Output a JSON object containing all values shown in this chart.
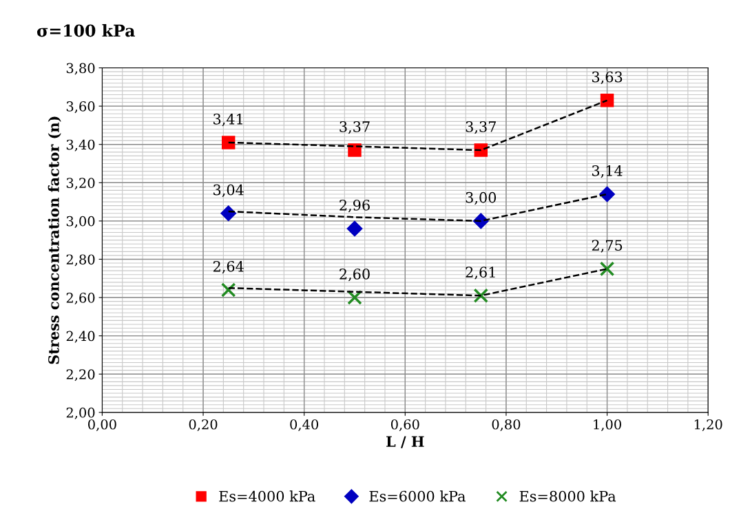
{
  "chart_data": {
    "type": "scatter",
    "title": "σ=100 kPa",
    "xlabel": "L / H",
    "ylabel": "Stress concentration factor (n)",
    "x": [
      0.25,
      0.5,
      0.75,
      1.0
    ],
    "series": [
      {
        "name": "Es=4000 kPa",
        "color": "#ff0000",
        "marker": "square",
        "values": [
          3.41,
          3.37,
          3.37,
          3.63
        ],
        "value_labels": [
          "3,41",
          "3,37",
          "3,37",
          "3,63"
        ]
      },
      {
        "name": "Es=6000 kPa",
        "color": "#0000c0",
        "marker": "diamond",
        "values": [
          3.04,
          2.96,
          3.0,
          3.14
        ],
        "value_labels": [
          "3,04",
          "2,96",
          "3,00",
          "3,14"
        ]
      },
      {
        "name": "Es=8000 kPa",
        "color": "#228b22",
        "marker": "cross",
        "values": [
          2.64,
          2.6,
          2.61,
          2.75
        ],
        "value_labels": [
          "2,64",
          "2,60",
          "2,61",
          "2,75"
        ]
      },
      {
        "type": "line",
        "color": "#000000",
        "line_style": "dashed",
        "marker": "none",
        "x": [
          0.25,
          0.5,
          0.75,
          1.0
        ],
        "values": [
          3.41,
          3.39,
          3.37,
          3.63
        ]
      },
      {
        "type": "line",
        "color": "#000000",
        "line_style": "dashed",
        "marker": "none",
        "x": [
          0.25,
          0.5,
          0.75,
          1.0
        ],
        "values": [
          3.05,
          3.02,
          3.0,
          3.14
        ]
      },
      {
        "type": "line",
        "color": "#000000",
        "line_style": "dashed",
        "marker": "none",
        "x": [
          0.25,
          0.5,
          0.75,
          1.0
        ],
        "values": [
          2.65,
          2.63,
          2.61,
          2.75
        ]
      }
    ],
    "xlim": [
      0,
      1.2
    ],
    "xticks": [
      {
        "value": 0,
        "label": "0,00"
      },
      {
        "value": 0.2,
        "label": "0,20"
      },
      {
        "value": 0.4,
        "label": "0,40"
      },
      {
        "value": 0.6,
        "label": "0,60"
      },
      {
        "value": 0.8,
        "label": "0,80"
      },
      {
        "value": 1.0,
        "label": "1,00"
      },
      {
        "value": 1.2,
        "label": "1,20"
      }
    ],
    "ylim": [
      2.0,
      3.8
    ],
    "yticks": [
      {
        "value": 2.0,
        "label": "2,00"
      },
      {
        "value": 2.2,
        "label": "2,20"
      },
      {
        "value": 2.4,
        "label": "2,40"
      },
      {
        "value": 2.6,
        "label": "2,60"
      },
      {
        "value": 2.8,
        "label": "2,80"
      },
      {
        "value": 3.0,
        "label": "3,00"
      },
      {
        "value": 3.2,
        "label": "3,20"
      },
      {
        "value": 3.4,
        "label": "3,40"
      },
      {
        "value": 3.6,
        "label": "3,60"
      },
      {
        "value": 3.8,
        "label": "3,80"
      }
    ],
    "grid": true,
    "legend": "bottom"
  }
}
